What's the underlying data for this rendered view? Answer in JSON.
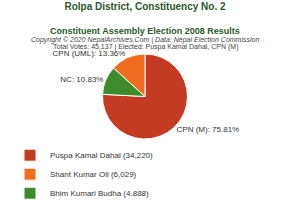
{
  "chart_data": {
    "type": "pie",
    "title": "Rolpa District, Constituency No. 2",
    "subtitle": "Constituent Assembly Election 2008 Results",
    "annotations": [
      "Copyright © 2020 NepalArchives.Com | Data: Nepal Election Commission",
      "Total Votes: 45,137 | Elected: Puspa Kamal Dahal, CPN (M)"
    ],
    "categories": [
      "Puspa Kamal Dahal (34,220)",
      "Shant Kumar Oli (6,029)",
      "Bhim Kumari Budha (4,888)"
    ],
    "values": [
      75.81,
      13.36,
      10.83
    ],
    "value_labels": [
      "CPN (M): 75.81%",
      "CPN (UML): 13.36%",
      "NC: 10.83%"
    ],
    "colors": [
      "#c23b22",
      "#f26c1f",
      "#3d8b2a"
    ],
    "data_labels": true,
    "legend": "bottom"
  }
}
